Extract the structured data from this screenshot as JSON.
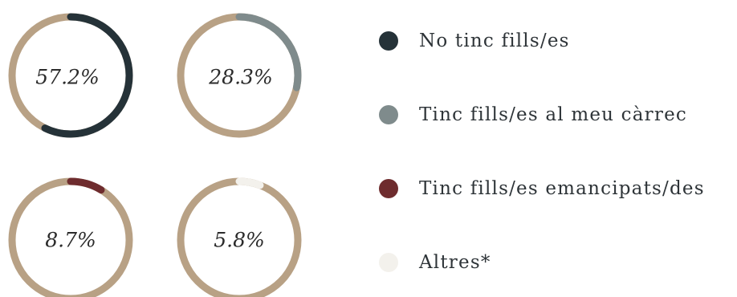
{
  "chart_data": {
    "type": "donut",
    "track_color": "#b8a185",
    "charts": [
      {
        "label": "57.2%",
        "value": 57.2,
        "color": "#253238",
        "category": "No tinc fills/es"
      },
      {
        "label": "28.3%",
        "value": 28.3,
        "color": "#7f8b8c",
        "category": "Tinc fills/es al meu càrrec"
      },
      {
        "label": "8.7%",
        "value": 8.7,
        "color": "#6e2c2e",
        "category": "Tinc fills/es emancipats/des"
      },
      {
        "label": "5.8%",
        "value": 5.8,
        "color": "#f3f1ec",
        "category": "Altres*"
      }
    ],
    "legend": {
      "placement": "right",
      "items": [
        {
          "label": "No tinc fills/es",
          "color": "#253238"
        },
        {
          "label": "Tinc fills/es al meu càrrec",
          "color": "#7f8b8c"
        },
        {
          "label": "Tinc fills/es emancipats/des",
          "color": "#6e2c2e"
        },
        {
          "label": "Altres*",
          "color": "#f3f1ec"
        }
      ]
    }
  }
}
